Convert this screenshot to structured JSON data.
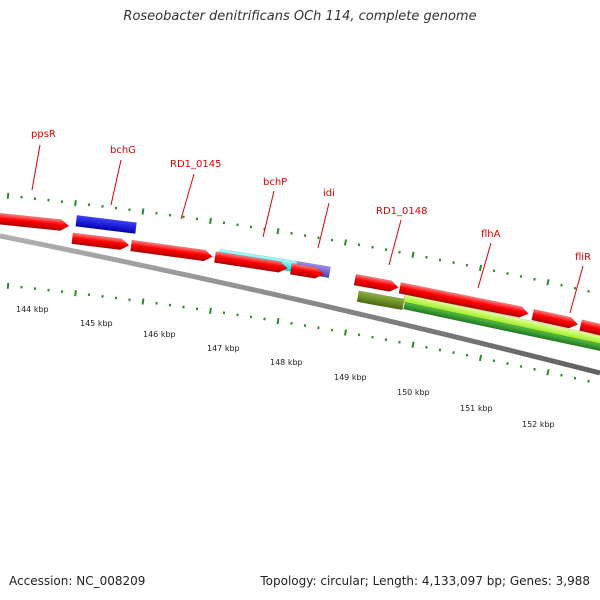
{
  "title": "Roseobacter denitrificans OCh 114, complete genome",
  "footer": {
    "accession": "Accession: NC_008209",
    "summary": "Topology: circular; Length: 4,133,097 bp; Genes: 3,988"
  },
  "gene_labels": [
    "ppsR",
    "bchG",
    "RD1_0145",
    "bchP",
    "idi",
    "RD1_0148",
    "flhA",
    "fliR"
  ],
  "kbp_ticks": [
    "144 kbp",
    "145 kbp",
    "146 kbp",
    "147 kbp",
    "148 kbp",
    "149 kbp",
    "150 kbp",
    "151 kbp",
    "152 kbp"
  ],
  "colors": {
    "gene": "#ff0000",
    "backbone": "#808080",
    "tick": "#2a8a2a",
    "label": "#e00000",
    "bchG_cog": "#0000ee",
    "bchP_cog": "#22eeee",
    "idi_cog": "#7060d0",
    "rd1_0148_cog": "#6b8e23",
    "flhA_cog_light": "#aaff33",
    "flhA_cog_dark": "#33aa33"
  }
}
